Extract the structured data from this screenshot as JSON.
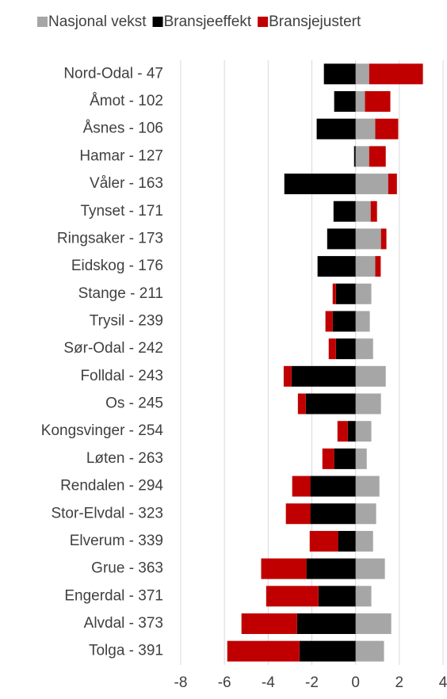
{
  "chart_data": {
    "type": "bar",
    "orientation": "horizontal",
    "stacked": true,
    "categories": [
      "Nord-Odal - 47",
      "Åmot - 102",
      "Åsnes - 106",
      "Hamar - 127",
      "Våler - 163",
      "Tynset - 171",
      "Ringsaker - 173",
      "Eidskog - 176",
      "Stange - 211",
      "Trysil - 239",
      "Sør-Odal - 242",
      "Folldal - 243",
      "Os - 245",
      "Kongsvinger - 254",
      "Løten - 263",
      "Rendalen - 294",
      "Stor-Elvdal - 323",
      "Elverum - 339",
      "Grue - 363",
      "Engerdal - 371",
      "Alvdal - 373",
      "Tolga - 391"
    ],
    "series": [
      {
        "name": "Nasjonal vekst",
        "color": "#a6a6a6",
        "values": [
          0.62,
          0.43,
          0.9,
          0.62,
          1.49,
          0.69,
          1.16,
          0.9,
          0.72,
          0.65,
          0.8,
          1.38,
          1.16,
          0.72,
          0.51,
          1.09,
          0.94,
          0.8,
          1.34,
          0.72,
          1.63,
          1.3
        ]
      },
      {
        "name": "Bransjeeffekt",
        "color": "#000000",
        "values": [
          -1.45,
          -0.98,
          -1.78,
          -0.07,
          -3.26,
          -1.01,
          -1.3,
          -1.74,
          -0.9,
          -1.05,
          -0.9,
          -2.93,
          -2.28,
          -0.36,
          -0.98,
          -2.07,
          -2.07,
          -0.8,
          -2.25,
          -1.7,
          -2.68,
          -2.57
        ]
      },
      {
        "name": "Bransjejustert",
        "color": "#c00000",
        "values": [
          2.46,
          1.16,
          1.05,
          0.76,
          0.4,
          0.29,
          0.25,
          0.25,
          -0.15,
          -0.33,
          -0.33,
          -0.36,
          -0.36,
          -0.47,
          -0.54,
          -0.83,
          -1.12,
          -1.3,
          -2.07,
          -2.39,
          -2.54,
          -3.3
        ]
      }
    ],
    "xlim": [
      -8,
      4
    ],
    "xticks": [
      -8,
      -6,
      -4,
      -2,
      0,
      2,
      4
    ],
    "grid": true,
    "legend": "top"
  }
}
